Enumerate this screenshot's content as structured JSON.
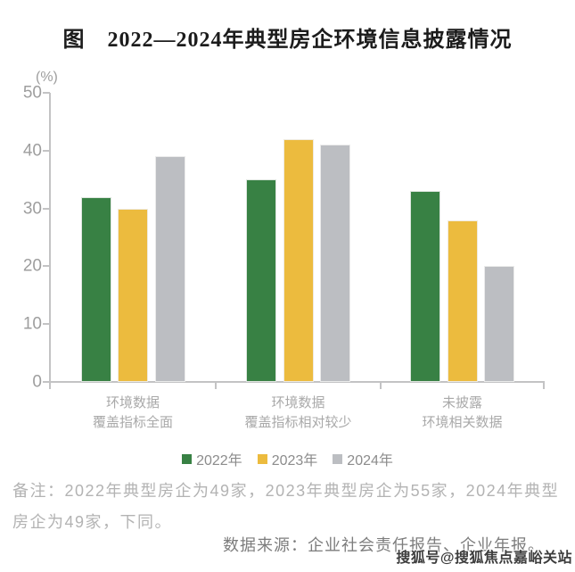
{
  "title": "图　2022—2024年典型房企环境信息披露情况",
  "chart_data": {
    "type": "bar",
    "title": "图　2022—2024年典型房企环境信息披露情况",
    "unit_label": "(%)",
    "categories": [
      "环境数据\n覆盖指标全面",
      "环境数据\n覆盖指标相对较少",
      "未披露\n环境相关数据"
    ],
    "series": [
      {
        "name": "2022年",
        "color": "#388144",
        "values": [
          32,
          35,
          33
        ]
      },
      {
        "name": "2023年",
        "color": "#ecbb3e",
        "values": [
          30,
          42,
          28
        ]
      },
      {
        "name": "2024年",
        "color": "#bcbec2",
        "values": [
          39,
          41,
          20
        ]
      }
    ],
    "xlabel": "",
    "ylabel": "(%)",
    "ylim": [
      0,
      50
    ],
    "yticks": [
      0,
      10,
      20,
      30,
      40,
      50
    ],
    "grid": false,
    "legend_position": "bottom"
  },
  "footnote": {
    "note": "备注：2022年典型房企为49家，2023年典型房企为55家，2024年典型房企为49家，下同。",
    "source": "数据来源：企业社会责任报告、企业年报。"
  },
  "watermark": "搜狐号@搜狐焦点嘉峪关站",
  "colors": {
    "series_2022": "#388144",
    "series_2023": "#ecbb3e",
    "series_2024": "#bcbec2",
    "axis": "#c3c3c4",
    "tick_text": "#9e9e9e",
    "note_text": "#b3b3b3",
    "source_text": "#7d7d7d"
  }
}
